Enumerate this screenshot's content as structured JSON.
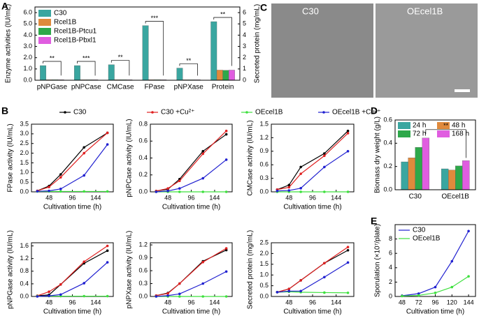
{
  "chart_data": [
    {
      "panel": "A",
      "type": "bar",
      "ylabel": "Enzyme activities (IU/mL)",
      "y2label": "Secreted protein (mg/mL)",
      "categories": [
        "pNPGase",
        "pNPCase",
        "CMCase",
        "FPase",
        "pNPXase",
        "Protein"
      ],
      "series": [
        {
          "name": "C30",
          "color": "#3aa6a0",
          "values": [
            1.3,
            1.3,
            1.38,
            4.85,
            1.08,
            5.2
          ]
        },
        {
          "name": "Rcel1B",
          "color": "#e08a3c",
          "values": [
            0.05,
            0.04,
            0.05,
            0.05,
            0.04,
            0.9
          ]
        },
        {
          "name": "Rcel1B-Ptcu1",
          "color": "#2ea84a",
          "values": [
            0.05,
            0.04,
            0.05,
            0.05,
            0.04,
            0.88
          ]
        },
        {
          "name": "Rcel1B-Pbxl1",
          "color": "#e05de0",
          "values": [
            0.04,
            0.04,
            0.04,
            0.04,
            0.04,
            0.9
          ]
        }
      ],
      "ylim": [
        0,
        6.5
      ],
      "yticks": [
        {
          "value": 0,
          "label": "0.0"
        },
        {
          "value": 1,
          "label": "1.0"
        },
        {
          "value": 2,
          "label": "2.0"
        },
        {
          "value": 3,
          "label": "3.0"
        },
        {
          "value": 4,
          "label": "4.0"
        },
        {
          "value": 5,
          "label": "5.0"
        },
        {
          "value": 6,
          "label": "6.0"
        }
      ],
      "y2lim": [
        0,
        6.5
      ],
      "y2ticks": [
        0,
        1,
        2,
        3,
        4,
        5,
        6
      ],
      "annotations": [
        "**",
        "***",
        "**",
        "***",
        "**",
        "**"
      ]
    },
    {
      "panel": "B",
      "type": "line",
      "legend": [
        {
          "name": "C30",
          "color": "#000000"
        },
        {
          "name": "C30 +Cu²⁺",
          "color": "#e02020"
        },
        {
          "name": "OEcel1B",
          "color": "#3ee03e"
        },
        {
          "name": "OEcel1B +Cu²⁺",
          "color": "#2020d0"
        }
      ],
      "x": [
        24,
        48,
        72,
        120,
        168
      ],
      "xlim": [
        12,
        180
      ],
      "xticks": [
        48,
        96,
        144
      ],
      "xlabel": "Cultivation time (h)",
      "panels": [
        {
          "ylabel": "FPase activity (IU/mL)",
          "ylim": [
            0,
            3.5
          ],
          "yticks": [
            {
              "value": 0,
              "label": "0.0"
            },
            0.5,
            {
              "value": 1,
              "label": "1.0"
            },
            1.5,
            {
              "value": 2,
              "label": "2.0"
            },
            2.5,
            {
              "value": 3,
              "label": "3.0"
            },
            3.5
          ],
          "series": [
            {
              "values": [
                0.05,
                0.3,
                0.9,
                2.3,
                3.05
              ]
            },
            {
              "values": [
                0.05,
                0.25,
                0.75,
                2.0,
                3.05
              ]
            },
            {
              "values": [
                0.02,
                0.02,
                0.02,
                0.02,
                0.02
              ]
            },
            {
              "values": [
                0.03,
                0.05,
                0.15,
                0.85,
                2.45
              ]
            }
          ]
        },
        {
          "ylabel": "pNPCase activity (IU/mL)",
          "ylim": [
            0,
            0.8
          ],
          "yticks": [
            {
              "value": 0,
              "label": "0.0"
            },
            0.2,
            0.4,
            0.6,
            0.8
          ],
          "series": [
            {
              "values": [
                0.01,
                0.03,
                0.15,
                0.48,
                0.68
              ]
            },
            {
              "values": [
                0.01,
                0.04,
                0.13,
                0.45,
                0.72
              ]
            },
            {
              "values": [
                0.0,
                0.0,
                0.0,
                0.0,
                0.0
              ]
            },
            {
              "values": [
                0.0,
                0.01,
                0.04,
                0.16,
                0.38
              ]
            }
          ]
        },
        {
          "ylabel": "CMCase activity (IU/mL)",
          "ylim": [
            0,
            1.5
          ],
          "yticks": [
            {
              "value": 0,
              "label": "0.0"
            },
            0.3,
            0.6,
            0.9,
            1.2,
            1.5
          ],
          "series": [
            {
              "values": [
                0.05,
                0.15,
                0.55,
                0.85,
                1.35
              ]
            },
            {
              "values": [
                0.05,
                0.1,
                0.4,
                0.8,
                1.3
              ]
            },
            {
              "values": [
                0.0,
                0.0,
                0.0,
                0.0,
                0.0
              ]
            },
            {
              "values": [
                0.02,
                0.03,
                0.08,
                0.55,
                0.9
              ]
            }
          ]
        },
        {
          "ylabel": "pNPGase activity (IU/mL)",
          "ylim": [
            0,
            1.7
          ],
          "yticks": [
            {
              "value": 0,
              "label": "0.0"
            },
            0.4,
            0.8,
            1.2,
            1.6
          ],
          "series": [
            {
              "values": [
                0.02,
                0.05,
                0.38,
                1.05,
                1.45
              ]
            },
            {
              "values": [
                0.02,
                0.15,
                0.38,
                1.1,
                1.6
              ]
            },
            {
              "values": [
                0.01,
                0.01,
                0.01,
                0.01,
                0.01
              ]
            },
            {
              "values": [
                0.0,
                0.02,
                0.06,
                0.42,
                1.08
              ]
            }
          ]
        },
        {
          "ylabel": "pNPXase activity (IU/mL)",
          "ylim": [
            0,
            1.25
          ],
          "yticks": [
            {
              "value": 0,
              "label": "0.0"
            },
            0.3,
            0.6,
            0.9,
            1.2
          ],
          "series": [
            {
              "values": [
                0.02,
                0.08,
                0.3,
                0.82,
                1.08
              ]
            },
            {
              "values": [
                0.02,
                0.07,
                0.3,
                0.8,
                1.12
              ]
            },
            {
              "values": [
                0.0,
                0.0,
                0.0,
                0.0,
                0.0
              ]
            },
            {
              "values": [
                0.0,
                0.02,
                0.06,
                0.3,
                0.58
              ]
            }
          ]
        },
        {
          "ylabel": "Secreted protein (mg/mL)",
          "ylim": [
            0,
            2.5
          ],
          "yticks": [
            {
              "value": 0,
              "label": "0.0"
            },
            0.5,
            {
              "value": 1,
              "label": "1.0"
            },
            1.5,
            {
              "value": 2,
              "label": "2.0"
            },
            2.5
          ],
          "series": [
            {
              "values": [
                0.2,
                0.35,
                0.75,
                1.55,
                2.15
              ]
            },
            {
              "values": [
                0.2,
                0.35,
                0.75,
                1.55,
                2.3
              ]
            },
            {
              "values": [
                0.2,
                0.22,
                0.2,
                0.18,
                0.17
              ]
            },
            {
              "values": [
                0.2,
                0.25,
                0.25,
                0.9,
                1.58
              ]
            }
          ]
        }
      ]
    },
    {
      "panel": "C",
      "type": "image",
      "labels": [
        "C30",
        "OEcel1B"
      ]
    },
    {
      "panel": "D",
      "type": "bar",
      "ylabel": "Biomass dry weight (g/L)",
      "categories": [
        "C30",
        "OEcel1B"
      ],
      "series": [
        {
          "name": "24 h",
          "color": "#3aa6a0",
          "values": [
            0.24,
            0.18
          ]
        },
        {
          "name": "48 h",
          "color": "#e08a3c",
          "values": [
            0.275,
            0.17
          ]
        },
        {
          "name": "72 h",
          "color": "#2ea84a",
          "values": [
            0.365,
            0.205
          ]
        },
        {
          "name": "168 h",
          "color": "#e05de0",
          "values": [
            0.445,
            0.25
          ]
        }
      ],
      "ylim": [
        0,
        0.6
      ],
      "yticks": [
        {
          "value": 0,
          "label": "0.0"
        },
        0.2,
        0.4,
        0.6
      ],
      "annotation": "**"
    },
    {
      "panel": "E",
      "type": "line",
      "ylabel": "Sporulation (×10⁷/plate)",
      "xlabel": "Cultivation time (h)",
      "x": [
        48,
        72,
        96,
        120,
        144
      ],
      "xlim": [
        38,
        154
      ],
      "xticks": [
        48,
        72,
        96,
        120,
        144
      ],
      "ylim": [
        0,
        10
      ],
      "yticks": [
        0,
        2,
        4,
        6,
        8
      ],
      "series": [
        {
          "name": "C30",
          "color": "#2020d0",
          "values": [
            0.1,
            0.4,
            1.3,
            4.9,
            9.1
          ]
        },
        {
          "name": "OEcel1B",
          "color": "#3ee03e",
          "values": [
            0.05,
            0.15,
            0.5,
            1.3,
            2.8
          ]
        }
      ]
    }
  ]
}
